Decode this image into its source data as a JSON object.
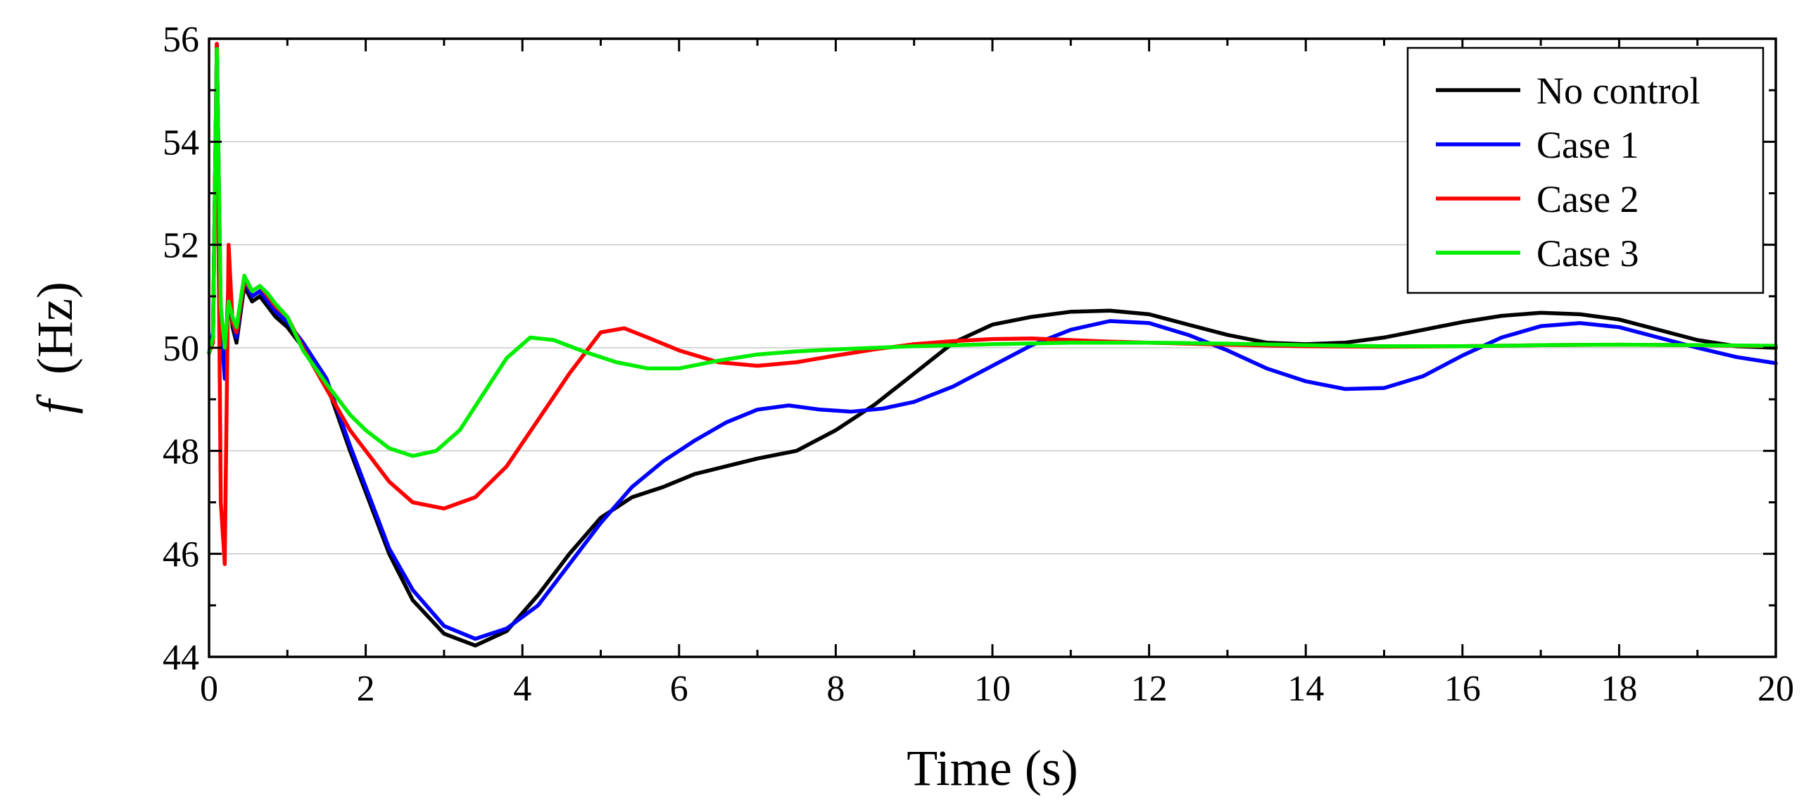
{
  "chart_data": {
    "type": "line",
    "xlabel": "Time (s)",
    "ylabel_symbol": "f",
    "ylabel_unit": "(Hz)",
    "xlim": [
      0,
      20
    ],
    "ylim": [
      44,
      56
    ],
    "x_ticks": [
      0,
      2,
      4,
      6,
      8,
      10,
      12,
      14,
      16,
      18,
      20
    ],
    "y_ticks": [
      44,
      46,
      48,
      50,
      52,
      54,
      56
    ],
    "x_tick_labels": [
      "0",
      "2",
      "4",
      "6",
      "8",
      "10",
      "12",
      "14",
      "16",
      "18",
      "20"
    ],
    "y_tick_labels": [
      "44",
      "46",
      "48",
      "50",
      "52",
      "54",
      "56"
    ],
    "grid": "horizontal",
    "legend_position": "top-right",
    "series": [
      {
        "name": "No control",
        "color": "#000000",
        "points": [
          [
            0,
            49.9
          ],
          [
            0.05,
            50.2
          ],
          [
            0.1,
            55.9
          ],
          [
            0.15,
            50.6
          ],
          [
            0.2,
            49.5
          ],
          [
            0.25,
            51.2
          ],
          [
            0.3,
            50.4
          ],
          [
            0.35,
            50.1
          ],
          [
            0.45,
            51.2
          ],
          [
            0.55,
            50.9
          ],
          [
            0.65,
            51.0
          ],
          [
            0.75,
            50.8
          ],
          [
            0.85,
            50.6
          ],
          [
            1.0,
            50.4
          ],
          [
            1.2,
            50.0
          ],
          [
            1.5,
            49.3
          ],
          [
            1.8,
            48.0
          ],
          [
            2.0,
            47.2
          ],
          [
            2.3,
            46.0
          ],
          [
            2.6,
            45.1
          ],
          [
            3.0,
            44.45
          ],
          [
            3.4,
            44.22
          ],
          [
            3.8,
            44.5
          ],
          [
            4.2,
            45.2
          ],
          [
            4.6,
            46.0
          ],
          [
            5.0,
            46.7
          ],
          [
            5.4,
            47.1
          ],
          [
            5.8,
            47.3
          ],
          [
            6.2,
            47.55
          ],
          [
            6.6,
            47.7
          ],
          [
            7.0,
            47.85
          ],
          [
            7.5,
            48.0
          ],
          [
            8.0,
            48.4
          ],
          [
            8.5,
            48.9
          ],
          [
            9.0,
            49.5
          ],
          [
            9.5,
            50.1
          ],
          [
            10.0,
            50.45
          ],
          [
            10.5,
            50.6
          ],
          [
            11.0,
            50.7
          ],
          [
            11.5,
            50.72
          ],
          [
            12.0,
            50.65
          ],
          [
            12.5,
            50.45
          ],
          [
            13.0,
            50.25
          ],
          [
            13.5,
            50.1
          ],
          [
            14.0,
            50.07
          ],
          [
            14.5,
            50.1
          ],
          [
            15.0,
            50.2
          ],
          [
            15.5,
            50.35
          ],
          [
            16.0,
            50.5
          ],
          [
            16.5,
            50.62
          ],
          [
            17.0,
            50.68
          ],
          [
            17.5,
            50.65
          ],
          [
            18.0,
            50.55
          ],
          [
            18.5,
            50.35
          ],
          [
            19.0,
            50.15
          ],
          [
            19.5,
            50.03
          ],
          [
            20.0,
            50.0
          ]
        ]
      },
      {
        "name": "Case 1",
        "color": "#0000ff",
        "points": [
          [
            0,
            49.9
          ],
          [
            0.05,
            50.3
          ],
          [
            0.1,
            55.9
          ],
          [
            0.15,
            50.5
          ],
          [
            0.2,
            49.4
          ],
          [
            0.25,
            51.3
          ],
          [
            0.3,
            50.5
          ],
          [
            0.35,
            50.2
          ],
          [
            0.45,
            51.3
          ],
          [
            0.55,
            51.0
          ],
          [
            0.65,
            51.1
          ],
          [
            0.75,
            50.9
          ],
          [
            0.85,
            50.7
          ],
          [
            1.0,
            50.5
          ],
          [
            1.2,
            50.1
          ],
          [
            1.5,
            49.4
          ],
          [
            1.8,
            48.1
          ],
          [
            2.0,
            47.3
          ],
          [
            2.3,
            46.1
          ],
          [
            2.6,
            45.3
          ],
          [
            3.0,
            44.6
          ],
          [
            3.4,
            44.35
          ],
          [
            3.8,
            44.55
          ],
          [
            4.2,
            45.0
          ],
          [
            4.6,
            45.8
          ],
          [
            5.0,
            46.6
          ],
          [
            5.4,
            47.3
          ],
          [
            5.8,
            47.8
          ],
          [
            6.2,
            48.2
          ],
          [
            6.6,
            48.55
          ],
          [
            7.0,
            48.8
          ],
          [
            7.4,
            48.88
          ],
          [
            7.8,
            48.8
          ],
          [
            8.2,
            48.76
          ],
          [
            8.6,
            48.82
          ],
          [
            9.0,
            48.95
          ],
          [
            9.5,
            49.25
          ],
          [
            10.0,
            49.65
          ],
          [
            10.5,
            50.05
          ],
          [
            11.0,
            50.35
          ],
          [
            11.5,
            50.52
          ],
          [
            12.0,
            50.48
          ],
          [
            12.5,
            50.25
          ],
          [
            13.0,
            49.95
          ],
          [
            13.5,
            49.6
          ],
          [
            14.0,
            49.35
          ],
          [
            14.5,
            49.2
          ],
          [
            15.0,
            49.22
          ],
          [
            15.5,
            49.45
          ],
          [
            16.0,
            49.85
          ],
          [
            16.5,
            50.2
          ],
          [
            17.0,
            50.42
          ],
          [
            17.5,
            50.48
          ],
          [
            18.0,
            50.4
          ],
          [
            18.5,
            50.2
          ],
          [
            19.0,
            50.0
          ],
          [
            19.5,
            49.82
          ],
          [
            20.0,
            49.7
          ]
        ]
      },
      {
        "name": "Case 2",
        "color": "#ff0000",
        "points": [
          [
            0,
            49.9
          ],
          [
            0.05,
            50.1
          ],
          [
            0.1,
            55.9
          ],
          [
            0.15,
            47.0
          ],
          [
            0.2,
            45.8
          ],
          [
            0.25,
            52.0
          ],
          [
            0.3,
            50.5
          ],
          [
            0.35,
            50.3
          ],
          [
            0.45,
            51.3
          ],
          [
            0.55,
            51.1
          ],
          [
            0.65,
            51.2
          ],
          [
            0.75,
            51.0
          ],
          [
            0.85,
            50.8
          ],
          [
            1.0,
            50.6
          ],
          [
            1.2,
            50.0
          ],
          [
            1.5,
            49.2
          ],
          [
            1.8,
            48.4
          ],
          [
            2.0,
            48.0
          ],
          [
            2.3,
            47.4
          ],
          [
            2.6,
            47.0
          ],
          [
            3.0,
            46.88
          ],
          [
            3.4,
            47.1
          ],
          [
            3.8,
            47.7
          ],
          [
            4.2,
            48.6
          ],
          [
            4.6,
            49.5
          ],
          [
            5.0,
            50.3
          ],
          [
            5.3,
            50.38
          ],
          [
            5.6,
            50.2
          ],
          [
            6.0,
            49.95
          ],
          [
            6.5,
            49.72
          ],
          [
            7.0,
            49.65
          ],
          [
            7.5,
            49.72
          ],
          [
            8.0,
            49.85
          ],
          [
            8.5,
            49.97
          ],
          [
            9.0,
            50.07
          ],
          [
            9.5,
            50.13
          ],
          [
            10.0,
            50.17
          ],
          [
            10.5,
            50.18
          ],
          [
            11.0,
            50.15
          ],
          [
            11.5,
            50.12
          ],
          [
            12.0,
            50.1
          ],
          [
            13.0,
            50.06
          ],
          [
            14.0,
            50.03
          ],
          [
            15.0,
            50.02
          ],
          [
            16.0,
            50.03
          ],
          [
            17.0,
            50.05
          ],
          [
            18.0,
            50.06
          ],
          [
            19.0,
            50.05
          ],
          [
            20.0,
            50.03
          ]
        ]
      },
      {
        "name": "Case 3",
        "color": "#00ee00",
        "points": [
          [
            0,
            49.9
          ],
          [
            0.05,
            50.2
          ],
          [
            0.1,
            55.8
          ],
          [
            0.15,
            50.8
          ],
          [
            0.2,
            50.0
          ],
          [
            0.25,
            50.9
          ],
          [
            0.3,
            50.6
          ],
          [
            0.35,
            50.4
          ],
          [
            0.45,
            51.4
          ],
          [
            0.55,
            51.1
          ],
          [
            0.65,
            51.2
          ],
          [
            0.75,
            51.05
          ],
          [
            0.85,
            50.85
          ],
          [
            1.0,
            50.6
          ],
          [
            1.2,
            49.95
          ],
          [
            1.5,
            49.3
          ],
          [
            1.8,
            48.7
          ],
          [
            2.0,
            48.4
          ],
          [
            2.3,
            48.05
          ],
          [
            2.6,
            47.9
          ],
          [
            2.9,
            48.0
          ],
          [
            3.2,
            48.4
          ],
          [
            3.5,
            49.1
          ],
          [
            3.8,
            49.8
          ],
          [
            4.1,
            50.2
          ],
          [
            4.4,
            50.15
          ],
          [
            4.8,
            49.92
          ],
          [
            5.2,
            49.72
          ],
          [
            5.6,
            49.6
          ],
          [
            6.0,
            49.6
          ],
          [
            6.5,
            49.75
          ],
          [
            7.0,
            49.87
          ],
          [
            7.5,
            49.93
          ],
          [
            8.0,
            49.97
          ],
          [
            8.5,
            50.0
          ],
          [
            9.0,
            50.03
          ],
          [
            10.0,
            50.07
          ],
          [
            11.0,
            50.1
          ],
          [
            12.0,
            50.1
          ],
          [
            13.0,
            50.08
          ],
          [
            14.0,
            50.05
          ],
          [
            15.0,
            50.03
          ],
          [
            16.0,
            50.03
          ],
          [
            17.0,
            50.05
          ],
          [
            18.0,
            50.06
          ],
          [
            19.0,
            50.05
          ],
          [
            20.0,
            50.04
          ]
        ]
      }
    ]
  }
}
